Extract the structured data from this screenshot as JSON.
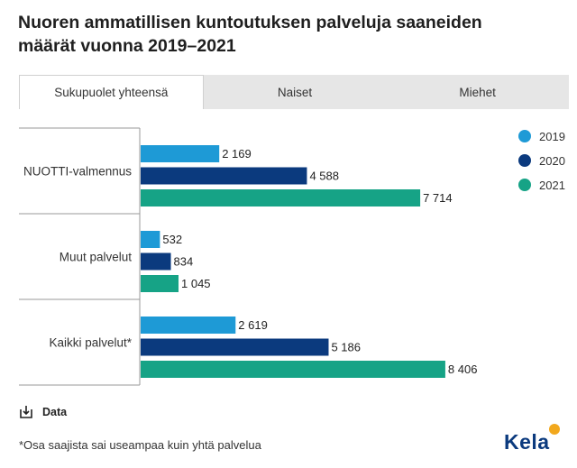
{
  "title": "Nuoren ammatillisen kuntoutuksen palveluja saaneiden määrät vuonna 2019–2021",
  "tabs": [
    {
      "label": "Sukupuolet yhteensä",
      "active": true
    },
    {
      "label": "Naiset",
      "active": false
    },
    {
      "label": "Miehet",
      "active": false
    }
  ],
  "chart_data": {
    "type": "bar",
    "orientation": "horizontal",
    "categories": [
      "NUOTTI-valmennus",
      "Muut palvelut",
      "Kaikki palvelut*"
    ],
    "series": [
      {
        "name": "2019",
        "color": "#1e9ad6",
        "values": [
          2169,
          532,
          2619
        ]
      },
      {
        "name": "2020",
        "color": "#0b3a7e",
        "values": [
          4588,
          834,
          5186
        ]
      },
      {
        "name": "2021",
        "color": "#16a386",
        "values": [
          7714,
          1045,
          8406
        ]
      }
    ],
    "value_labels": [
      [
        "2 169",
        "532",
        "2 619"
      ],
      [
        "4 588",
        "834",
        "5 186"
      ],
      [
        "7 714",
        "1 045",
        "8 406"
      ]
    ],
    "xlim": [
      0,
      10000
    ],
    "legend_position": "top-right",
    "grid": false
  },
  "data_link": {
    "label": "Data",
    "icon": "download-icon"
  },
  "footnote": "*Osa saajista sai useampaa kuin yhtä palvelua",
  "logo_text": "Kela"
}
